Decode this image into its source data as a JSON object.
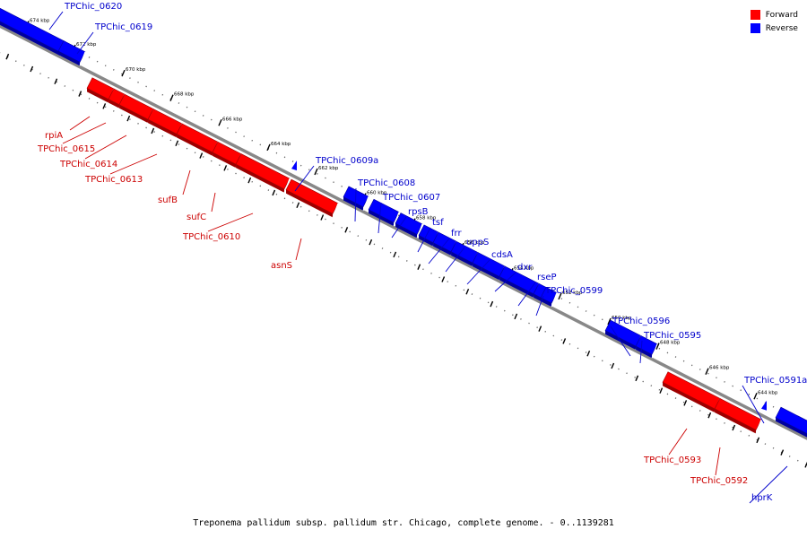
{
  "colors": {
    "forward": "#ff0000",
    "forward_label": "#cc0000",
    "reverse": "#0000ff",
    "reverse_label": "#0000cc",
    "backbone": "#888888"
  },
  "legend": {
    "forward_label": "Forward",
    "reverse_label": "Reverse"
  },
  "caption": "Treponema pallidum subsp. pallidum str. Chicago, complete genome. - 0..1139281",
  "scale_labels": [
    "674 kbp",
    "672 kbp",
    "670 kbp",
    "668 kbp",
    "666 kbp",
    "664 kbp",
    "662 kbp",
    "660 kbp",
    "658 kbp",
    "656 kbp",
    "654 kbp",
    "652 kbp",
    "650 kbp",
    "648 kbp",
    "646 kbp",
    "644 kbp"
  ],
  "genes": [
    {
      "name": "TPChic_0620",
      "strand": "reverse"
    },
    {
      "name": "TPChic_0619",
      "strand": "reverse"
    },
    {
      "name": "rpiA",
      "strand": "forward"
    },
    {
      "name": "TPChic_0615",
      "strand": "forward"
    },
    {
      "name": "TPChic_0614",
      "strand": "forward"
    },
    {
      "name": "TPChic_0613",
      "strand": "forward"
    },
    {
      "name": "sufB",
      "strand": "forward"
    },
    {
      "name": "sufC",
      "strand": "forward"
    },
    {
      "name": "TPChic_0610",
      "strand": "forward"
    },
    {
      "name": "TPChic_0609a",
      "strand": "reverse"
    },
    {
      "name": "asnS",
      "strand": "forward"
    },
    {
      "name": "TPChic_0608",
      "strand": "reverse"
    },
    {
      "name": "TPChic_0607",
      "strand": "reverse"
    },
    {
      "name": "rpsB",
      "strand": "reverse"
    },
    {
      "name": "tsf",
      "strand": "reverse"
    },
    {
      "name": "frr",
      "strand": "reverse"
    },
    {
      "name": "uppS",
      "strand": "reverse"
    },
    {
      "name": "cdsA",
      "strand": "reverse"
    },
    {
      "name": "dxr",
      "strand": "reverse"
    },
    {
      "name": "rseP",
      "strand": "reverse"
    },
    {
      "name": "TPChic_0599",
      "strand": "reverse"
    },
    {
      "name": "TPChic_0596",
      "strand": "reverse"
    },
    {
      "name": "TPChic_0595",
      "strand": "reverse"
    },
    {
      "name": "TPChic_0591a",
      "strand": "reverse"
    },
    {
      "name": "TPChic_0593",
      "strand": "forward"
    },
    {
      "name": "TPChic_0592",
      "strand": "forward"
    },
    {
      "name": "hprK",
      "strand": "reverse"
    }
  ]
}
